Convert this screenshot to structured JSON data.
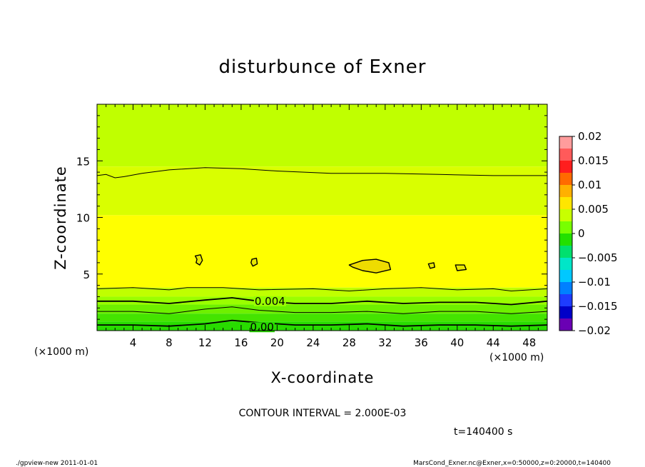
{
  "chart_data": {
    "type": "contour",
    "title": "disturbunce of Exner",
    "xlabel": "X-coordinate",
    "ylabel": "Z-coordinate",
    "x_unit_label": "(×1000 m)",
    "y_unit_label": "(×1000 m)",
    "xlim": [
      0,
      50
    ],
    "ylim": [
      0,
      20
    ],
    "x_ticks": [
      4,
      8,
      12,
      16,
      20,
      24,
      28,
      32,
      36,
      40,
      44,
      48
    ],
    "y_ticks": [
      5,
      10,
      15
    ],
    "colorbar": {
      "levels": [
        -0.02,
        -0.015,
        -0.01,
        -0.005,
        0,
        0.005,
        0.01,
        0.015,
        0.02
      ],
      "labels": [
        "0.02",
        "0.015",
        "0.01",
        "0.005",
        "0",
        "−0.005",
        "−0.01",
        "−0.015",
        "−0.02"
      ],
      "colors_top_to_bottom": [
        "#ff9c9c",
        "#ff5a5a",
        "#ff1e1e",
        "#ff6a00",
        "#ffb000",
        "#ffe600",
        "#c8ff00",
        "#78ff00",
        "#22e000",
        "#00e06e",
        "#00e6c8",
        "#00c8ff",
        "#0080ff",
        "#1e3cff",
        "#0000c8",
        "#6a00b4"
      ]
    },
    "fill_bands": [
      {
        "z_from": 14.5,
        "z_to": 20,
        "color": "#c0ff00"
      },
      {
        "z_from": 10.2,
        "z_to": 14.5,
        "color": "#d9ff00"
      },
      {
        "z_from": 3.8,
        "z_to": 10.2,
        "color": "#ffff00"
      },
      {
        "z_from": 3.0,
        "z_to": 3.8,
        "color": "#c0ff00"
      },
      {
        "z_from": 2.3,
        "z_to": 3.0,
        "color": "#9aff00"
      },
      {
        "z_from": 1.5,
        "z_to": 2.3,
        "color": "#6ef000"
      },
      {
        "z_from": 0.8,
        "z_to": 1.5,
        "color": "#44e400"
      },
      {
        "z_from": 0,
        "z_to": 0.8,
        "color": "#28dc00"
      }
    ],
    "contour_lines": [
      {
        "points": [
          [
            0,
            13.7
          ],
          [
            1,
            13.8
          ],
          [
            2,
            13.5
          ],
          [
            3,
            13.6
          ],
          [
            5,
            13.9
          ],
          [
            8,
            14.2
          ],
          [
            12,
            14.4
          ],
          [
            16,
            14.3
          ],
          [
            20,
            14.1
          ],
          [
            26,
            13.9
          ],
          [
            32,
            13.9
          ],
          [
            38,
            13.8
          ],
          [
            44,
            13.7
          ],
          [
            50,
            13.7
          ]
        ],
        "width": 1
      },
      {
        "points": [
          [
            0,
            3.7
          ],
          [
            4,
            3.8
          ],
          [
            8,
            3.6
          ],
          [
            10,
            3.8
          ],
          [
            14,
            3.8
          ],
          [
            18,
            3.6
          ],
          [
            24,
            3.7
          ],
          [
            28,
            3.5
          ],
          [
            32,
            3.7
          ],
          [
            36,
            3.8
          ],
          [
            40,
            3.6
          ],
          [
            44,
            3.7
          ],
          [
            46,
            3.5
          ],
          [
            50,
            3.7
          ]
        ],
        "width": 1
      },
      {
        "points": [
          [
            0,
            2.6
          ],
          [
            4,
            2.6
          ],
          [
            8,
            2.4
          ],
          [
            12,
            2.7
          ],
          [
            15,
            2.9
          ],
          [
            18,
            2.6
          ],
          [
            22,
            2.4
          ],
          [
            26,
            2.4
          ],
          [
            30,
            2.6
          ],
          [
            34,
            2.4
          ],
          [
            38,
            2.5
          ],
          [
            42,
            2.5
          ],
          [
            46,
            2.3
          ],
          [
            50,
            2.6
          ]
        ],
        "width": 1.8,
        "label": "0.004",
        "label_at": [
          17.5,
          2.6
        ]
      },
      {
        "points": [
          [
            0,
            1.7
          ],
          [
            4,
            1.7
          ],
          [
            8,
            1.5
          ],
          [
            12,
            1.9
          ],
          [
            15,
            2.1
          ],
          [
            18,
            1.8
          ],
          [
            22,
            1.6
          ],
          [
            26,
            1.6
          ],
          [
            30,
            1.7
          ],
          [
            34,
            1.5
          ],
          [
            38,
            1.7
          ],
          [
            42,
            1.7
          ],
          [
            46,
            1.5
          ],
          [
            50,
            1.7
          ]
        ],
        "width": 1
      },
      {
        "points": [
          [
            0,
            0.5
          ],
          [
            4,
            0.5
          ],
          [
            8,
            0.4
          ],
          [
            12,
            0.6
          ],
          [
            15,
            0.9
          ],
          [
            18,
            0.7
          ],
          [
            22,
            0.5
          ],
          [
            26,
            0.5
          ],
          [
            30,
            0.6
          ],
          [
            34,
            0.4
          ],
          [
            38,
            0.5
          ],
          [
            42,
            0.5
          ],
          [
            46,
            0.4
          ],
          [
            50,
            0.5
          ]
        ],
        "width": 1.8,
        "label": "0.00",
        "label_at": [
          17.0,
          0.3
        ]
      }
    ],
    "closed_contours": [
      {
        "points": [
          [
            10.9,
            6.6
          ],
          [
            11.5,
            6.7
          ],
          [
            11.7,
            6.2
          ],
          [
            11.4,
            5.8
          ],
          [
            11.0,
            6.0
          ],
          [
            11.1,
            6.3
          ]
        ],
        "fill": "#e8e800"
      },
      {
        "points": [
          [
            17.2,
            6.3
          ],
          [
            17.7,
            6.4
          ],
          [
            17.8,
            5.9
          ],
          [
            17.3,
            5.7
          ],
          [
            17.1,
            6.0
          ]
        ],
        "fill": "#e8e800"
      },
      {
        "points": [
          [
            28.0,
            5.8
          ],
          [
            29.5,
            6.2
          ],
          [
            31.0,
            6.3
          ],
          [
            32.4,
            6.0
          ],
          [
            32.6,
            5.4
          ],
          [
            31.0,
            5.1
          ],
          [
            29.5,
            5.3
          ],
          [
            28.4,
            5.6
          ]
        ],
        "fill": "#eedc00"
      },
      {
        "points": [
          [
            36.8,
            5.9
          ],
          [
            37.4,
            6.0
          ],
          [
            37.5,
            5.6
          ],
          [
            37.0,
            5.5
          ]
        ],
        "fill": "#e8e800"
      },
      {
        "points": [
          [
            39.8,
            5.8
          ],
          [
            40.8,
            5.8
          ],
          [
            41.0,
            5.4
          ],
          [
            40.0,
            5.3
          ]
        ],
        "fill": "#e8e800"
      }
    ]
  },
  "annotation": {
    "contour_interval": "CONTOUR INTERVAL = 2.000E-03",
    "time": "t=140400 s"
  },
  "footer": {
    "left": "./gpview-new  2011-01-01",
    "right": "MarsCond_Exner.nc@Exner,x=0:50000,z=0:20000,t=140400"
  }
}
